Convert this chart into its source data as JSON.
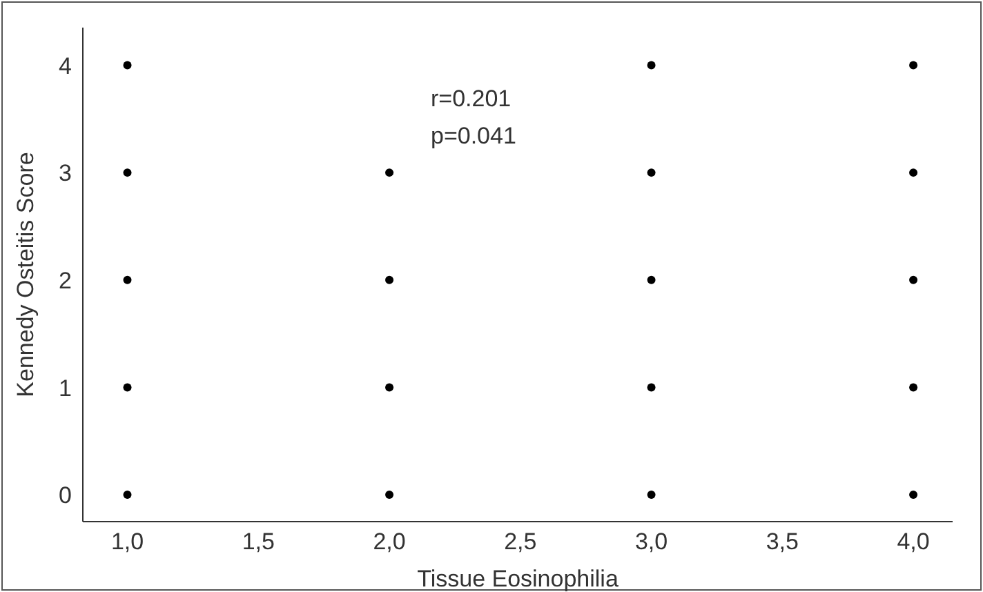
{
  "chart_data": {
    "type": "scatter",
    "xlabel": "Tissue Eosinophilia",
    "ylabel": "Kennedy Osteitis Score",
    "series": [
      {
        "color": "#000000",
        "x": [
          1,
          1,
          1,
          1,
          1,
          2,
          2,
          2,
          2,
          3,
          3,
          3,
          3,
          3,
          4,
          4,
          4,
          4,
          4
        ],
        "values": [
          0,
          1,
          2,
          3,
          4,
          0,
          1,
          2,
          3,
          0,
          1,
          2,
          3,
          4,
          0,
          1,
          2,
          3,
          4
        ]
      }
    ],
    "xlim": [
      0.83,
      4.15
    ],
    "xticks": [
      {
        "value": 1,
        "label": "1,0"
      },
      {
        "value": 1.5,
        "label": "1,5"
      },
      {
        "value": 2,
        "label": "2,0"
      },
      {
        "value": 2.5,
        "label": "2,5"
      },
      {
        "value": 3,
        "label": "3,0"
      },
      {
        "value": 3.5,
        "label": "3,5"
      },
      {
        "value": 4,
        "label": "4,0"
      }
    ],
    "ylim": [
      -0.25,
      4.35
    ],
    "yticks": [
      0,
      1,
      2,
      3,
      4
    ],
    "annotations": [
      "r=0.201",
      "p=0.041"
    ],
    "grid": false,
    "legend": false,
    "marker": "circle"
  }
}
